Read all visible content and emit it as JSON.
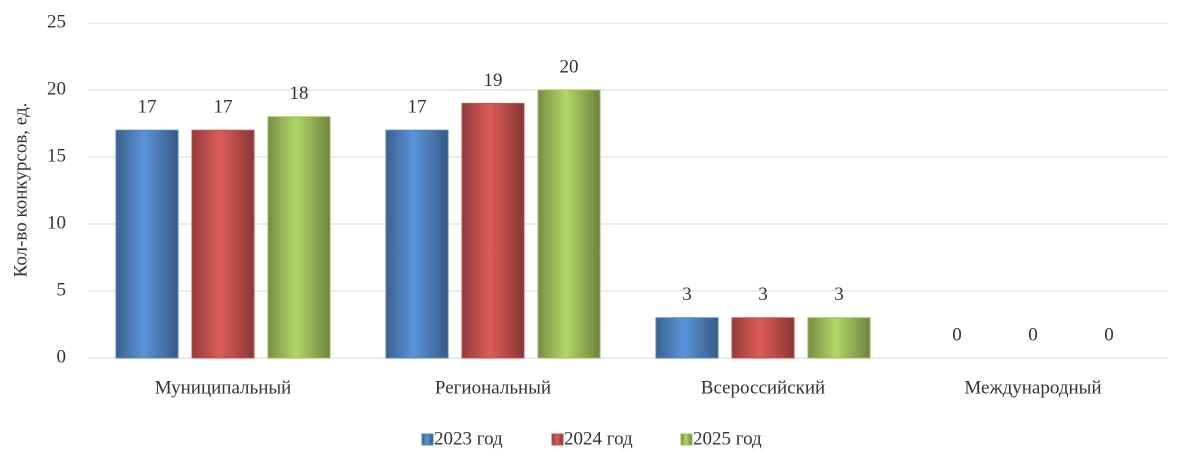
{
  "chart_data": {
    "type": "bar",
    "y_label": "Кол-во конкурсов, ед.",
    "categories": [
      "Муниципальный",
      "Региональный",
      "Всероссийский",
      "Международный"
    ],
    "series": [
      {
        "name": "2023 год",
        "color": "#4f81bd",
        "values": [
          17,
          17,
          3,
          0
        ]
      },
      {
        "name": "2024 год",
        "color": "#c0504d",
        "values": [
          17,
          19,
          3,
          0
        ]
      },
      {
        "name": "2025 год",
        "color": "#9bbb59",
        "values": [
          18,
          20,
          3,
          0
        ]
      }
    ],
    "ylim": [
      0,
      25
    ],
    "yticks": [
      0,
      5,
      10,
      15,
      20,
      25
    ],
    "grid": true,
    "legend": "bottom"
  }
}
